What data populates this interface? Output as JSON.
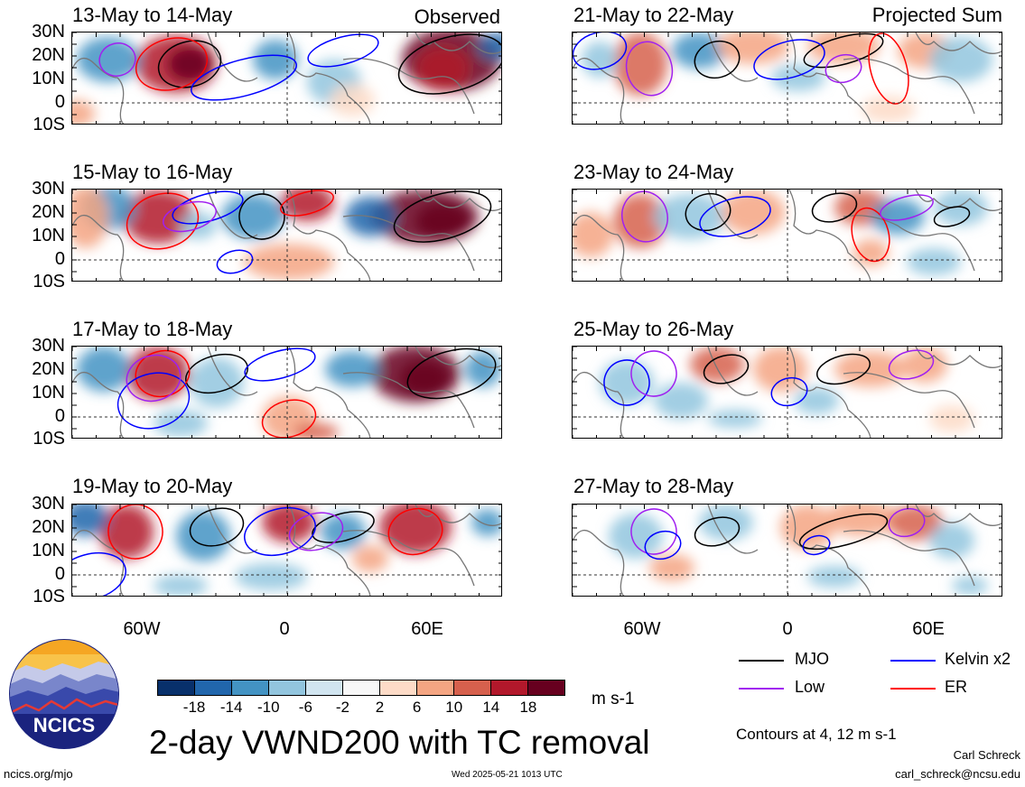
{
  "panels": [
    {
      "title": "13-May to 14-May",
      "tag": "Observed"
    },
    {
      "title": "15-May to 16-May",
      "tag": ""
    },
    {
      "title": "17-May to 18-May",
      "tag": ""
    },
    {
      "title": "19-May to 20-May",
      "tag": ""
    },
    {
      "title": "21-May to 22-May",
      "tag": "Projected Sum"
    },
    {
      "title": "23-May to 24-May",
      "tag": ""
    },
    {
      "title": "25-May to 26-May",
      "tag": ""
    },
    {
      "title": "27-May to 28-May",
      "tag": ""
    }
  ],
  "lat_labels": [
    "30N",
    "20N",
    "10N",
    "0",
    "10S"
  ],
  "lon_labels": [
    "60W",
    "0",
    "60E"
  ],
  "colorbar": {
    "ticks": [
      "-18",
      "-14",
      "-10",
      "-6",
      "-2",
      "2",
      "6",
      "10",
      "14",
      "18"
    ],
    "colors": [
      "#08306b",
      "#2166ac",
      "#4393c3",
      "#92c5de",
      "#d1e5f0",
      "#f7f7f7",
      "#fddbc7",
      "#f4a582",
      "#d6604d",
      "#b2182b",
      "#67001f"
    ],
    "unit": "m s-1"
  },
  "legend": [
    {
      "label": "MJO",
      "color": "#000000"
    },
    {
      "label": "Kelvin x2",
      "color": "#0000ff"
    },
    {
      "label": "Low",
      "color": "#a020f0"
    },
    {
      "label": "ER",
      "color": "#ff0000"
    }
  ],
  "contours_note": "Contours at 4, 12 m s-1",
  "main_title": "2-day VWND200 with TC removal",
  "logo_text": "NCICS",
  "footer_left": "ncics.org/mjo",
  "footer_center": "Wed 2025-05-21 1013 UTC",
  "footer_author": "Carl Schreck",
  "footer_email": "carl_schreck@ncsu.edu"
}
